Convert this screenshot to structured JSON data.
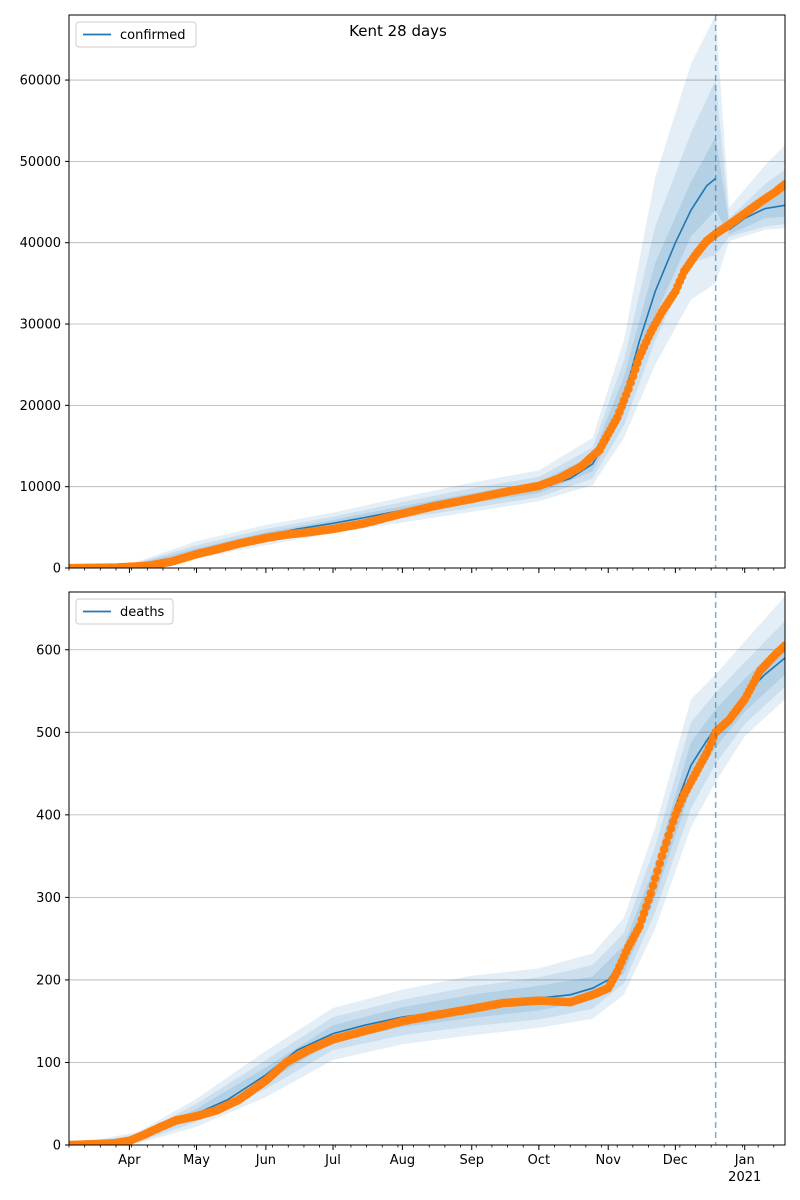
{
  "figure": {
    "title": "Kent 28 days"
  },
  "colors": {
    "model_line": "#1f77b4",
    "observed_points": "#ff7f0e",
    "band": "#1f77b4",
    "grid": "#b0b0b0",
    "forecast_marker": "#1f77b4"
  },
  "x_ticks": {
    "labels": [
      "Apr",
      "May",
      "Jun",
      "Jul",
      "Aug",
      "Sep",
      "Oct",
      "Nov",
      "Dec",
      "Jan"
    ],
    "year_label": "2021",
    "range": [
      "2020-03-05",
      "2021-01-19"
    ]
  },
  "forecast_start": "2020-12-19",
  "chart_data": [
    {
      "type": "line",
      "legend": "confirmed",
      "legend_position": "top-left",
      "grid": "y",
      "ylim": [
        0,
        68000
      ],
      "y_ticks": [
        0,
        10000,
        20000,
        30000,
        40000,
        50000,
        60000
      ],
      "model_median": {
        "x": [
          "2020-03-05",
          "2020-03-20",
          "2020-04-01",
          "2020-04-15",
          "2020-05-01",
          "2020-05-15",
          "2020-06-01",
          "2020-06-15",
          "2020-07-01",
          "2020-07-15",
          "2020-08-01",
          "2020-08-15",
          "2020-09-01",
          "2020-09-15",
          "2020-10-01",
          "2020-10-15",
          "2020-10-25",
          "2020-11-01",
          "2020-11-08",
          "2020-11-15",
          "2020-11-22",
          "2020-12-01",
          "2020-12-08",
          "2020-12-15",
          "2020-12-19",
          "2020-12-25",
          "2021-01-01",
          "2021-01-10",
          "2021-01-19"
        ],
        "y": [
          0,
          50,
          200,
          700,
          2100,
          3000,
          4000,
          4800,
          5500,
          6200,
          7100,
          7800,
          8600,
          9200,
          9800,
          11000,
          12800,
          16000,
          21000,
          28000,
          34000,
          40000,
          44000,
          47000,
          47900,
          41600,
          43000,
          44200,
          44600
        ]
      },
      "band_p50": {
        "x": [
          "2020-03-05",
          "2020-04-01",
          "2020-05-01",
          "2020-06-01",
          "2020-07-01",
          "2020-08-01",
          "2020-09-01",
          "2020-10-01",
          "2020-10-25",
          "2020-11-08",
          "2020-11-22",
          "2020-12-08",
          "2020-12-19",
          "2020-12-25",
          "2021-01-10",
          "2021-01-19"
        ],
        "low": [
          0,
          120,
          1800,
          3600,
          5100,
          6600,
          8000,
          9200,
          11900,
          19000,
          31000,
          40800,
          44000,
          41000,
          43000,
          43200
        ],
        "high": [
          0,
          300,
          2400,
          4400,
          5900,
          7600,
          9200,
          10600,
          13800,
          23500,
          37500,
          47500,
          53000,
          42400,
          45800,
          47000
        ]
      },
      "band_p80": {
        "x": [
          "2020-03-05",
          "2020-04-01",
          "2020-05-01",
          "2020-06-01",
          "2020-07-01",
          "2020-08-01",
          "2020-09-01",
          "2020-10-01",
          "2020-10-25",
          "2020-11-08",
          "2020-11-22",
          "2020-12-08",
          "2020-12-19",
          "2020-12-25",
          "2021-01-10",
          "2021-01-19"
        ],
        "low": [
          0,
          80,
          1500,
          3200,
          4700,
          6100,
          7400,
          8700,
          11000,
          17500,
          28000,
          37500,
          38500,
          40700,
          42000,
          42300
        ],
        "high": [
          0,
          380,
          2800,
          4800,
          6300,
          8100,
          9800,
          11200,
          14800,
          25500,
          42000,
          53500,
          60000,
          43000,
          47200,
          49000
        ]
      },
      "band_p95": {
        "x": [
          "2020-03-05",
          "2020-04-01",
          "2020-05-01",
          "2020-06-01",
          "2020-07-01",
          "2020-08-01",
          "2020-09-01",
          "2020-10-01",
          "2020-10-25",
          "2020-11-08",
          "2020-11-22",
          "2020-12-08",
          "2020-12-19",
          "2020-12-25",
          "2021-01-10",
          "2021-01-19"
        ],
        "low": [
          0,
          50,
          1200,
          2800,
          4300,
          5600,
          6900,
          8200,
          10200,
          16000,
          25000,
          33000,
          35000,
          40200,
          41600,
          41800
        ],
        "high": [
          0,
          450,
          3300,
          5300,
          6800,
          8700,
          10500,
          12000,
          16000,
          28000,
          48000,
          62000,
          68000,
          44300,
          49500,
          52000
        ]
      },
      "observed": {
        "x": [
          "2020-03-05",
          "2020-03-25",
          "2020-04-01",
          "2020-04-10",
          "2020-04-20",
          "2020-05-01",
          "2020-05-10",
          "2020-05-20",
          "2020-06-01",
          "2020-06-10",
          "2020-06-20",
          "2020-07-01",
          "2020-07-15",
          "2020-08-01",
          "2020-08-15",
          "2020-09-01",
          "2020-09-15",
          "2020-10-01",
          "2020-10-10",
          "2020-10-20",
          "2020-10-28",
          "2020-11-01",
          "2020-11-05",
          "2020-11-10",
          "2020-11-15",
          "2020-11-20",
          "2020-11-25",
          "2020-12-01",
          "2020-12-05",
          "2020-12-10",
          "2020-12-15",
          "2020-12-19",
          "2020-12-25",
          "2021-01-01",
          "2021-01-08",
          "2021-01-15",
          "2021-01-19"
        ],
        "y": [
          0,
          50,
          150,
          300,
          800,
          1700,
          2300,
          3000,
          3700,
          4100,
          4400,
          4800,
          5500,
          6700,
          7600,
          8500,
          9300,
          10100,
          11000,
          12500,
          14500,
          16500,
          18500,
          22000,
          26000,
          29000,
          31500,
          34000,
          36500,
          38500,
          40200,
          41100,
          42200,
          43600,
          45000,
          46300,
          47200
        ]
      }
    },
    {
      "type": "line",
      "legend": "deaths",
      "legend_position": "top-left",
      "grid": "y",
      "ylim": [
        0,
        670
      ],
      "y_ticks": [
        0,
        100,
        200,
        300,
        400,
        500,
        600
      ],
      "model_median": {
        "x": [
          "2020-03-05",
          "2020-03-25",
          "2020-04-05",
          "2020-04-15",
          "2020-05-01",
          "2020-05-15",
          "2020-06-01",
          "2020-06-15",
          "2020-07-01",
          "2020-07-15",
          "2020-08-01",
          "2020-08-15",
          "2020-09-01",
          "2020-09-15",
          "2020-10-01",
          "2020-10-15",
          "2020-10-25",
          "2020-11-01",
          "2020-11-08",
          "2020-11-15",
          "2020-11-22",
          "2020-12-01",
          "2020-12-08",
          "2020-12-15",
          "2020-12-19",
          "2020-12-25",
          "2021-01-01",
          "2021-01-10",
          "2021-01-19"
        ],
        "y": [
          0,
          1,
          8,
          20,
          38,
          55,
          85,
          115,
          135,
          145,
          155,
          160,
          168,
          172,
          178,
          182,
          190,
          200,
          225,
          260,
          320,
          410,
          460,
          490,
          505,
          520,
          545,
          570,
          590
        ]
      },
      "band_p50": {
        "x": [
          "2020-03-05",
          "2020-04-05",
          "2020-05-01",
          "2020-06-01",
          "2020-07-01",
          "2020-08-01",
          "2020-09-01",
          "2020-10-01",
          "2020-10-25",
          "2020-11-08",
          "2020-11-22",
          "2020-12-08",
          "2020-12-19",
          "2021-01-01",
          "2021-01-19"
        ],
        "low": [
          0,
          6,
          33,
          76,
          125,
          143,
          154,
          163,
          176,
          208,
          300,
          432,
          482,
          525,
          570
        ],
        "high": [
          0,
          10,
          44,
          94,
          145,
          167,
          182,
          193,
          204,
          242,
          340,
          488,
          528,
          565,
          610
        ]
      },
      "band_p80": {
        "x": [
          "2020-03-05",
          "2020-04-05",
          "2020-05-01",
          "2020-06-01",
          "2020-07-01",
          "2020-08-01",
          "2020-09-01",
          "2020-10-01",
          "2020-10-25",
          "2020-11-08",
          "2020-11-22",
          "2020-12-08",
          "2020-12-19",
          "2021-01-01",
          "2021-01-19"
        ],
        "low": [
          0,
          4,
          28,
          68,
          115,
          133,
          144,
          152,
          165,
          196,
          282,
          408,
          462,
          510,
          555
        ],
        "high": [
          0,
          13,
          50,
          103,
          155,
          176,
          192,
          203,
          218,
          257,
          362,
          512,
          548,
          585,
          635
        ]
      },
      "band_p95": {
        "x": [
          "2020-03-05",
          "2020-04-05",
          "2020-05-01",
          "2020-06-01",
          "2020-07-01",
          "2020-08-01",
          "2020-09-01",
          "2020-10-01",
          "2020-10-25",
          "2020-11-08",
          "2020-11-22",
          "2020-12-08",
          "2020-12-19",
          "2021-01-01",
          "2021-01-19"
        ],
        "low": [
          0,
          2,
          22,
          58,
          103,
          122,
          133,
          142,
          153,
          182,
          262,
          385,
          440,
          495,
          540
        ],
        "high": [
          0,
          16,
          56,
          114,
          166,
          188,
          205,
          214,
          232,
          275,
          385,
          540,
          570,
          610,
          665
        ]
      },
      "observed": {
        "x": [
          "2020-03-05",
          "2020-03-25",
          "2020-04-01",
          "2020-04-08",
          "2020-04-15",
          "2020-04-22",
          "2020-05-01",
          "2020-05-10",
          "2020-05-20",
          "2020-06-01",
          "2020-06-10",
          "2020-06-20",
          "2020-07-01",
          "2020-07-15",
          "2020-08-01",
          "2020-08-15",
          "2020-09-01",
          "2020-09-15",
          "2020-10-01",
          "2020-10-15",
          "2020-10-25",
          "2020-11-01",
          "2020-11-05",
          "2020-11-10",
          "2020-11-15",
          "2020-11-20",
          "2020-11-25",
          "2020-12-01",
          "2020-12-05",
          "2020-12-10",
          "2020-12-15",
          "2020-12-19",
          "2020-12-25",
          "2021-01-01",
          "2021-01-08",
          "2021-01-15",
          "2021-01-19"
        ],
        "y": [
          0,
          2,
          5,
          13,
          22,
          30,
          35,
          42,
          55,
          78,
          100,
          115,
          128,
          138,
          150,
          157,
          165,
          172,
          175,
          173,
          182,
          190,
          210,
          240,
          265,
          305,
          350,
          400,
          425,
          450,
          475,
          500,
          515,
          540,
          575,
          595,
          605
        ]
      }
    }
  ]
}
